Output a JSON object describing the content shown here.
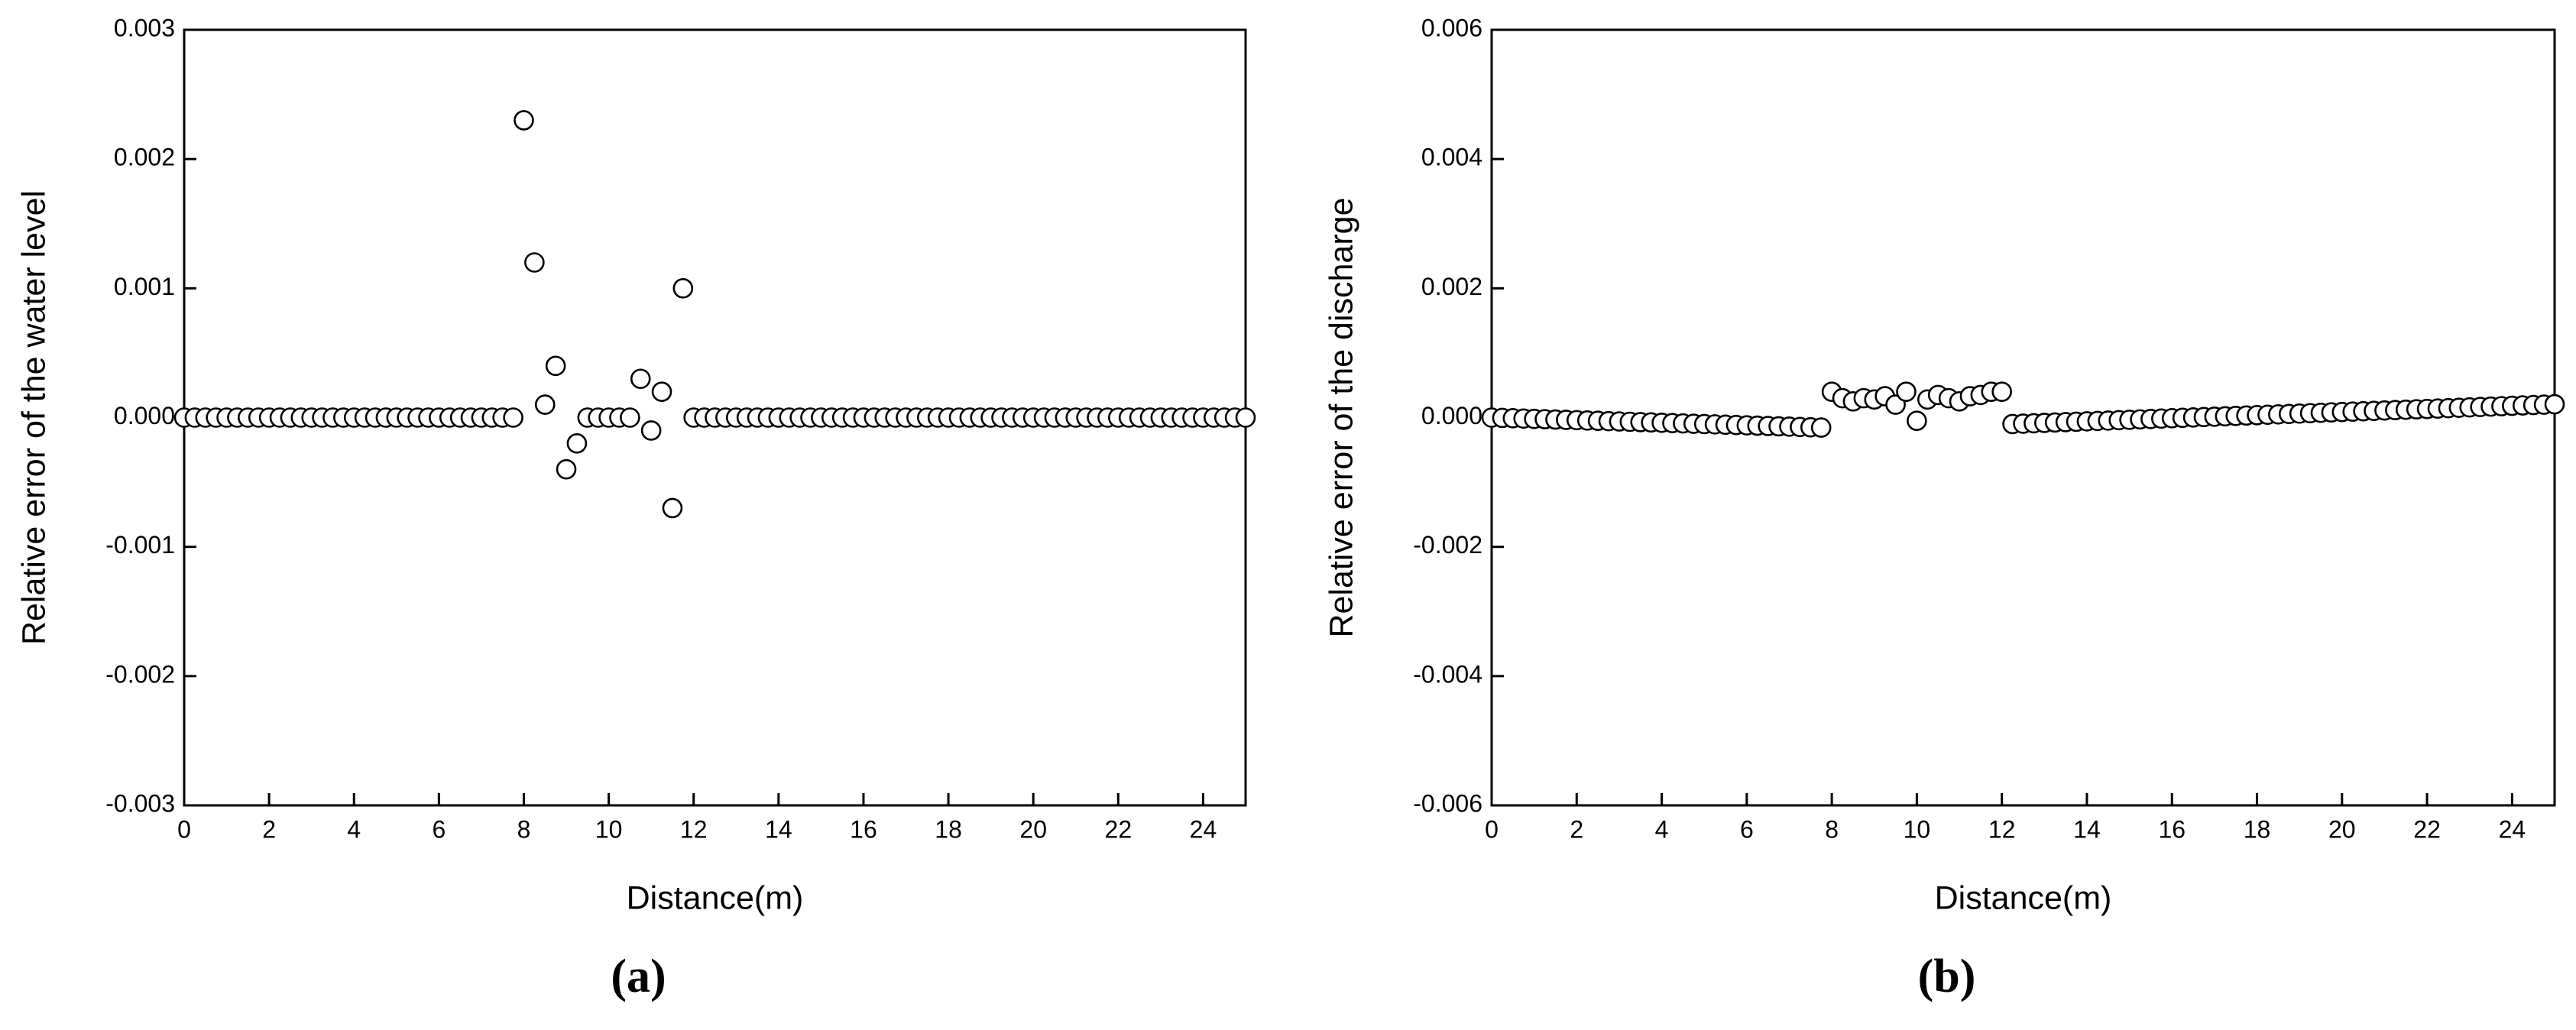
{
  "chart_data": [
    {
      "type": "scatter",
      "panel_label": "(a)",
      "xlabel": "Distance(m)",
      "ylabel": "Relative error of the water level",
      "x": [
        0,
        0.25,
        0.5,
        0.75,
        1,
        1.25,
        1.5,
        1.75,
        2,
        2.25,
        2.5,
        2.75,
        3,
        3.25,
        3.5,
        3.75,
        4,
        4.25,
        4.5,
        4.75,
        5,
        5.25,
        5.5,
        5.75,
        6,
        6.25,
        6.5,
        6.75,
        7,
        7.25,
        7.5,
        7.75,
        8,
        8.25,
        8.5,
        8.75,
        9,
        9.25,
        9.5,
        9.75,
        10,
        10.25,
        10.5,
        10.75,
        11,
        11.25,
        11.5,
        11.75,
        12,
        12.25,
        12.5,
        12.75,
        13,
        13.25,
        13.5,
        13.75,
        14,
        14.25,
        14.5,
        14.75,
        15,
        15.25,
        15.5,
        15.75,
        16,
        16.25,
        16.5,
        16.75,
        17,
        17.25,
        17.5,
        17.75,
        18,
        18.25,
        18.5,
        18.75,
        19,
        19.25,
        19.5,
        19.75,
        20,
        20.25,
        20.5,
        20.75,
        21,
        21.25,
        21.5,
        21.75,
        22,
        22.25,
        22.5,
        22.75,
        23,
        23.25,
        23.5,
        23.75,
        24,
        24.25,
        24.5,
        24.75,
        25
      ],
      "values": [
        0,
        0,
        0,
        0,
        0,
        0,
        0,
        0,
        0,
        0,
        0,
        0,
        0,
        0,
        0,
        0,
        0,
        0,
        0,
        0,
        0,
        0,
        0,
        0,
        0,
        0,
        0,
        0,
        0,
        0,
        0,
        0,
        0.0023,
        0.0012,
        0.0001,
        0.0004,
        -0.0004,
        -0.0002,
        0,
        0,
        0,
        0,
        0,
        0.0003,
        -0.0001,
        0.0002,
        -0.0007,
        0.001,
        0,
        0,
        0,
        0,
        0,
        0,
        0,
        0,
        0,
        0,
        0,
        0,
        0,
        0,
        0,
        0,
        0,
        0,
        0,
        0,
        0,
        0,
        0,
        0,
        0,
        0,
        0,
        0,
        0,
        0,
        0,
        0,
        0,
        0,
        0,
        0,
        0,
        0,
        0,
        0,
        0,
        0,
        0,
        0,
        0,
        0,
        0,
        0,
        0,
        0,
        0,
        0,
        0
      ],
      "color": "#000000",
      "marker": "open-circle",
      "xlim": [
        0,
        25
      ],
      "xticks": [
        0,
        2,
        4,
        6,
        8,
        10,
        12,
        14,
        16,
        18,
        20,
        22,
        24
      ],
      "ylim": [
        -0.003,
        0.003
      ],
      "yticks": [
        -0.003,
        -0.002,
        -0.001,
        {
          "value": 0,
          "label": "0.000"
        },
        0.001,
        0.002,
        0.003
      ]
    },
    {
      "type": "scatter",
      "panel_label": "(b)",
      "xlabel": "Distance(m)",
      "ylabel": "Relative error of the discharge",
      "x": [
        0,
        0.25,
        0.5,
        0.75,
        1,
        1.25,
        1.5,
        1.75,
        2,
        2.25,
        2.5,
        2.75,
        3,
        3.25,
        3.5,
        3.75,
        4,
        4.25,
        4.5,
        4.75,
        5,
        5.25,
        5.5,
        5.75,
        6,
        6.25,
        6.5,
        6.75,
        7,
        7.25,
        7.5,
        7.75,
        8,
        8.25,
        8.5,
        8.75,
        9,
        9.25,
        9.5,
        9.75,
        10,
        10.25,
        10.5,
        10.75,
        11,
        11.25,
        11.5,
        11.75,
        12,
        12.25,
        12.5,
        12.75,
        13,
        13.25,
        13.5,
        13.75,
        14,
        14.25,
        14.5,
        14.75,
        15,
        15.25,
        15.5,
        15.75,
        16,
        16.25,
        16.5,
        16.75,
        17,
        17.25,
        17.5,
        17.75,
        18,
        18.25,
        18.5,
        18.75,
        19,
        19.25,
        19.5,
        19.75,
        20,
        20.25,
        20.5,
        20.75,
        21,
        21.25,
        21.5,
        21.75,
        22,
        22.25,
        22.5,
        22.75,
        23,
        23.25,
        23.5,
        23.75,
        24,
        24.25,
        24.5,
        24.75,
        25
      ],
      "values": [
        0,
        -5e-06,
        -1e-05,
        -1.5e-05,
        -2e-05,
        -2.5e-05,
        -3e-05,
        -3.5e-05,
        -4e-05,
        -4.5e-05,
        -5e-05,
        -5.5e-05,
        -6e-05,
        -6.5e-05,
        -7e-05,
        -7.5e-05,
        -8e-05,
        -8.5e-05,
        -9e-05,
        -9.5e-05,
        -0.0001,
        -0.000105,
        -0.00011,
        -0.000115,
        -0.00012,
        -0.000125,
        -0.00013,
        -0.000135,
        -0.00014,
        -0.000145,
        -0.00015,
        -0.000155,
        0.0004,
        0.0003,
        0.00025,
        0.0003,
        0.00028,
        0.00033,
        0.0002,
        0.0004,
        -5e-05,
        0.00028,
        0.00035,
        0.0003,
        0.00025,
        0.00033,
        0.00035,
        0.0004,
        0.0004,
        -0.0001,
        -9.4e-05,
        -8.8e-05,
        -8.2e-05,
        -7.6e-05,
        -7e-05,
        -6.4e-05,
        -5.8e-05,
        -5.2e-05,
        -4.6e-05,
        -4e-05,
        -3.4e-05,
        -2.8e-05,
        -2.2e-05,
        -1.6e-05,
        -1e-05,
        -4e-06,
        2e-06,
        8e-06,
        1.4e-05,
        2e-05,
        2.6e-05,
        3.2e-05,
        3.8e-05,
        4.4e-05,
        5e-05,
        5.6e-05,
        6.2e-05,
        6.8e-05,
        7.4e-05,
        8e-05,
        8.6e-05,
        9.2e-05,
        9.8e-05,
        0.000104,
        0.00011,
        0.000116,
        0.000122,
        0.000128,
        0.000134,
        0.00014,
        0.000146,
        0.000152,
        0.000158,
        0.000164,
        0.00017,
        0.000176,
        0.000182,
        0.000188,
        0.000194,
        0.0002,
        0.000206
      ],
      "color": "#000000",
      "marker": "open-circle",
      "xlim": [
        0,
        25
      ],
      "xticks": [
        0,
        2,
        4,
        6,
        8,
        10,
        12,
        14,
        16,
        18,
        20,
        22,
        24
      ],
      "ylim": [
        -0.006,
        0.006
      ],
      "yticks": [
        -0.006,
        -0.004,
        -0.002,
        {
          "value": 0,
          "label": "0.000"
        },
        0.002,
        0.004,
        0.006
      ]
    }
  ]
}
